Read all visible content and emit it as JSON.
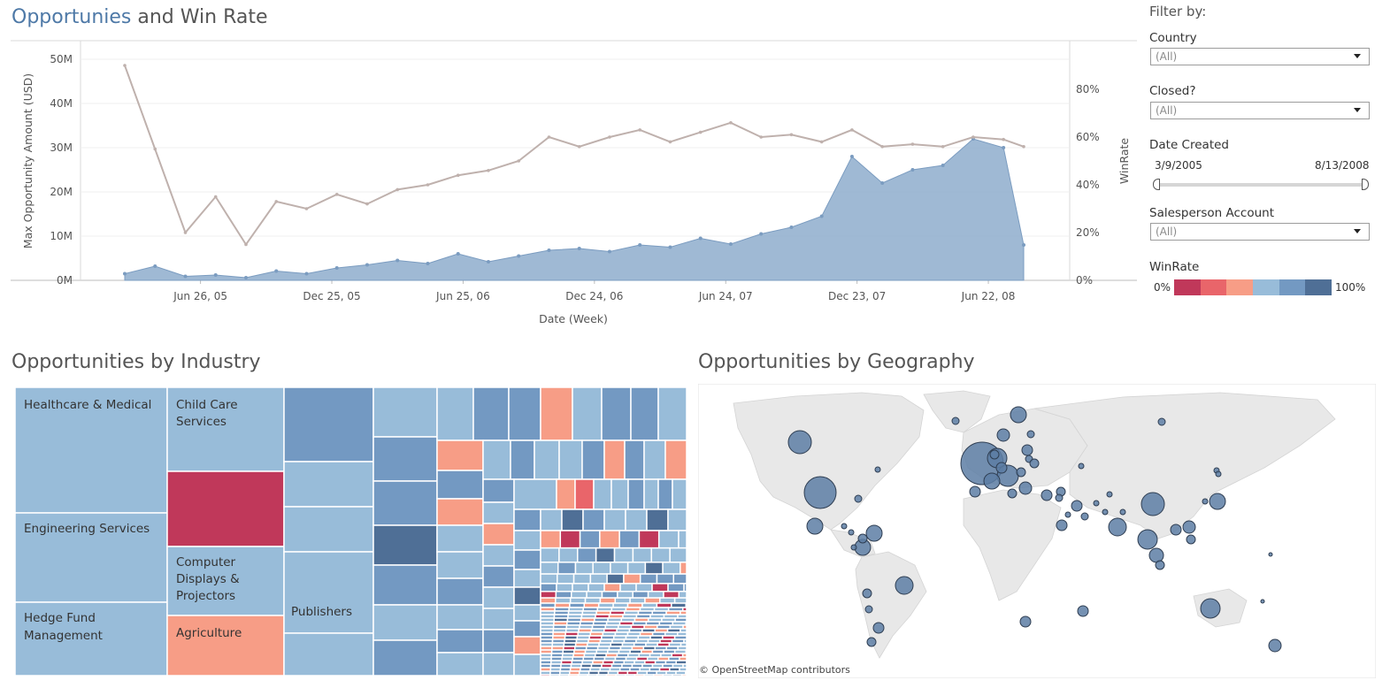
{
  "top": {
    "title_part1": "Opportunies",
    "title_part2": " and Win Rate"
  },
  "chart_data": [
    {
      "type": "area+line",
      "title": "Opportunies and Win Rate",
      "xlabel": "Date (Week)",
      "ylabel": "Max Opportunity Amount (USD)",
      "y2label": "WinRate",
      "x_ticks": [
        "Jun 26, 05",
        "Dec 25, 05",
        "Jun 25, 06",
        "Dec 24, 06",
        "Jun 24, 07",
        "Dec 23, 07",
        "Jun 22, 08"
      ],
      "y_ticks": [
        "0M",
        "10M",
        "20M",
        "30M",
        "40M",
        "50M"
      ],
      "y2_ticks": [
        "0%",
        "20%",
        "40%",
        "60%",
        "80%"
      ],
      "ylim": [
        0,
        54000000
      ],
      "y2lim": [
        0,
        1.0
      ],
      "x_range": [
        "2005-03-13",
        "2008-08-10"
      ],
      "x": [
        "2005-03-13",
        "2005-04-24",
        "2005-06-05",
        "2005-07-17",
        "2005-08-28",
        "2005-10-09",
        "2005-11-20",
        "2006-01-01",
        "2006-02-12",
        "2006-03-26",
        "2006-05-07",
        "2006-06-18",
        "2006-07-30",
        "2006-09-10",
        "2006-10-22",
        "2006-12-03",
        "2007-01-14",
        "2007-02-25",
        "2007-04-08",
        "2007-05-20",
        "2007-07-01",
        "2007-08-12",
        "2007-09-23",
        "2007-11-04",
        "2007-12-16",
        "2008-01-27",
        "2008-03-09",
        "2008-04-20",
        "2008-06-01",
        "2008-07-13",
        "2008-08-10"
      ],
      "series": [
        {
          "name": "Max Opportunity Amount (USD)",
          "axis": "left",
          "mark": "area",
          "values": [
            1500000,
            3200000,
            900000,
            1200000,
            600000,
            2100000,
            1500000,
            2800000,
            3500000,
            4500000,
            3800000,
            6000000,
            4200000,
            5500000,
            6800000,
            7200000,
            6500000,
            8000000,
            7500000,
            9500000,
            8200000,
            10500000,
            12000000,
            14500000,
            28000000,
            22000000,
            25000000,
            26000000,
            32000000,
            30000000,
            8000000
          ]
        },
        {
          "name": "WinRate",
          "axis": "right",
          "mark": "line",
          "values": [
            0.9,
            0.55,
            0.2,
            0.35,
            0.15,
            0.33,
            0.3,
            0.36,
            0.32,
            0.38,
            0.4,
            0.44,
            0.46,
            0.5,
            0.6,
            0.56,
            0.6,
            0.63,
            0.58,
            0.62,
            0.66,
            0.6,
            0.61,
            0.58,
            0.63,
            0.56,
            0.57,
            0.56,
            0.6,
            0.59,
            0.56
          ]
        }
      ]
    },
    {
      "type": "treemap",
      "title": "Opportunities by Industry",
      "labels": [
        "Healthcare & Medical",
        "Engineering Services",
        "Hedge Fund Management",
        "Child Care Services",
        "Computer Displays & Projectors",
        "Agriculture",
        "Publishers"
      ],
      "colors": [
        "#98bcd9",
        "#98bcd9",
        "#98bcd9",
        "#98bcd9",
        "#98bcd9",
        "#f79d86",
        "#98bcd9"
      ]
    },
    {
      "type": "map",
      "title": "Opportunities by Geography",
      "attribution": "© OpenStreetMap contributors"
    }
  ],
  "filters": {
    "heading": "Filter by:",
    "country_label": "Country",
    "country_value": "(All)",
    "closed_label": "Closed?",
    "closed_value": "(All)",
    "date_label": "Date Created",
    "date_start": "3/9/2005",
    "date_end": "8/13/2008",
    "salesperson_label": "Salesperson Account",
    "salesperson_value": "(All)",
    "winrate_label": "WinRate",
    "winrate_min": "0%",
    "winrate_max": "100%",
    "winrate_colors": [
      "#c0385a",
      "#e9656a",
      "#f79d86",
      "#98bcd9",
      "#7399c2",
      "#4f6f96"
    ]
  },
  "colors": {
    "area": "#8eadcc",
    "line": "#bfb1ad",
    "title_highlight": "#4e79a7"
  }
}
